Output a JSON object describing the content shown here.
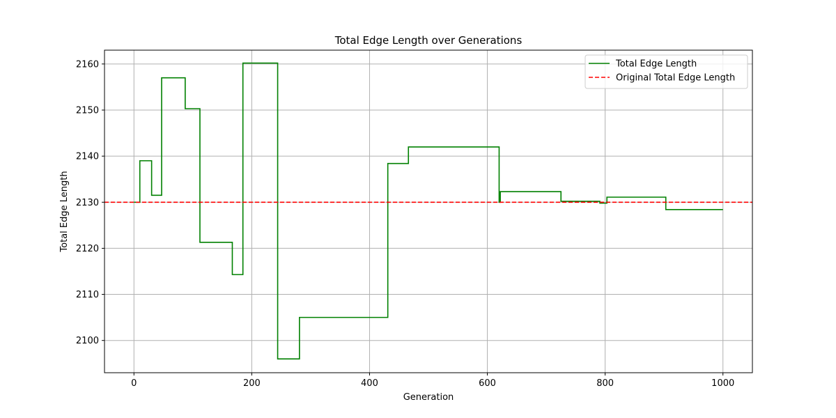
{
  "chart_data": {
    "type": "line",
    "title": "Total Edge Length over Generations",
    "xlabel": "Generation",
    "ylabel": "Total Edge Length",
    "xlim": [
      -50,
      1050
    ],
    "ylim": [
      2093,
      2163
    ],
    "xticks": [
      0,
      200,
      400,
      600,
      800,
      1000
    ],
    "yticks": [
      2100,
      2110,
      2120,
      2130,
      2140,
      2150,
      2160
    ],
    "grid": true,
    "legend_position": "top-right",
    "series": [
      {
        "name": "Total Edge Length",
        "color": "#008000",
        "style": "solid",
        "step": true,
        "points": [
          [
            0,
            2130.0
          ],
          [
            10,
            2139.0
          ],
          [
            30,
            2131.5
          ],
          [
            47,
            2157.0
          ],
          [
            87,
            2150.3
          ],
          [
            112,
            2121.3
          ],
          [
            167,
            2114.3
          ],
          [
            185,
            2160.2
          ],
          [
            244,
            2096.0
          ],
          [
            281,
            2105.0
          ],
          [
            431,
            2138.4
          ],
          [
            466,
            2142.0
          ],
          [
            620,
            2130.0
          ],
          [
            622,
            2132.3
          ],
          [
            725,
            2130.2
          ],
          [
            791,
            2129.8
          ],
          [
            803,
            2131.1
          ],
          [
            903,
            2128.4
          ],
          [
            1000,
            2128.4
          ]
        ]
      },
      {
        "name": "Original Total Edge Length",
        "color": "#ff0000",
        "style": "dashed",
        "y": 2130.0
      }
    ]
  }
}
